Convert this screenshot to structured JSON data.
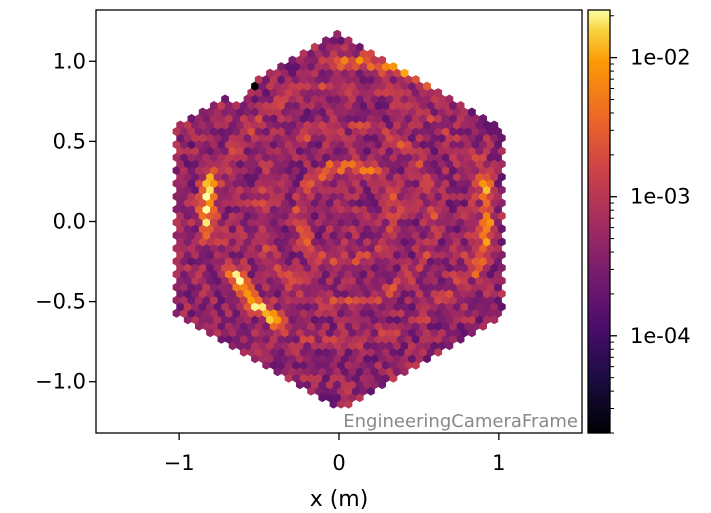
{
  "chart_data": {
    "type": "heatmap",
    "title": "",
    "xlabel": "x  (m)",
    "ylabel": "",
    "xlim": [
      -1.52,
      1.52
    ],
    "ylim": [
      -1.32,
      1.32
    ],
    "xticks": [
      -1,
      0,
      1
    ],
    "xtick_labels": [
      "−1",
      "0",
      "1"
    ],
    "yticks": [
      1.0,
      0.5,
      0.0,
      -0.5,
      -1.0
    ],
    "ytick_labels": [
      "1.0",
      "0.5",
      "0.0",
      "−0.5",
      "−1.0"
    ],
    "colorbar": {
      "scale": "log",
      "range": [
        2e-05,
        0.022
      ],
      "ticks": [
        0.01,
        0.001,
        0.0001
      ],
      "tick_labels": [
        "1e-02",
        "1e-03",
        "1e-04"
      ],
      "colormap": "inferno"
    },
    "annotation": "EngineeringCameraFrame",
    "pattern": {
      "shape": "hexagonal array of sensor pixels",
      "hex_radius": 1.18,
      "base_value": 0.00045,
      "rings": [
        {
          "radius": 0.3,
          "value": 0.0016
        },
        {
          "radius": 0.55,
          "value": 0.0012
        },
        {
          "radius": 0.8,
          "value": 0.0009
        }
      ],
      "bright_arcs": [
        {
          "center": [
            0.05,
            0.05
          ],
          "radius": 0.8,
          "angle_from_deg": 200,
          "angle_to_deg": 245,
          "value": 0.017
        },
        {
          "center": [
            0.05,
            0.05
          ],
          "radius": 0.88,
          "angle_from_deg": 160,
          "angle_to_deg": 195,
          "value": 0.012
        },
        {
          "center": [
            0.05,
            0.05
          ],
          "radius": 0.3,
          "angle_from_deg": 40,
          "angle_to_deg": 140,
          "value": 0.0035
        },
        {
          "center": [
            0.05,
            0.05
          ],
          "radius": 0.88,
          "angle_from_deg": -30,
          "angle_to_deg": 25,
          "value": 0.006
        },
        {
          "center": [
            0.05,
            0.05
          ],
          "radius": 0.95,
          "angle_from_deg": 55,
          "angle_to_deg": 100,
          "value": 0.0045
        }
      ],
      "dark_pixels": [
        {
          "x": -0.54,
          "y": 0.9,
          "value": 2e-05
        },
        {
          "x": -0.52,
          "y": 0.85,
          "value": 2e-05
        }
      ],
      "missing_pixels": [
        {
          "x": -0.6,
          "y": 0.83
        },
        {
          "x": -0.64,
          "y": 0.78
        }
      ]
    }
  }
}
